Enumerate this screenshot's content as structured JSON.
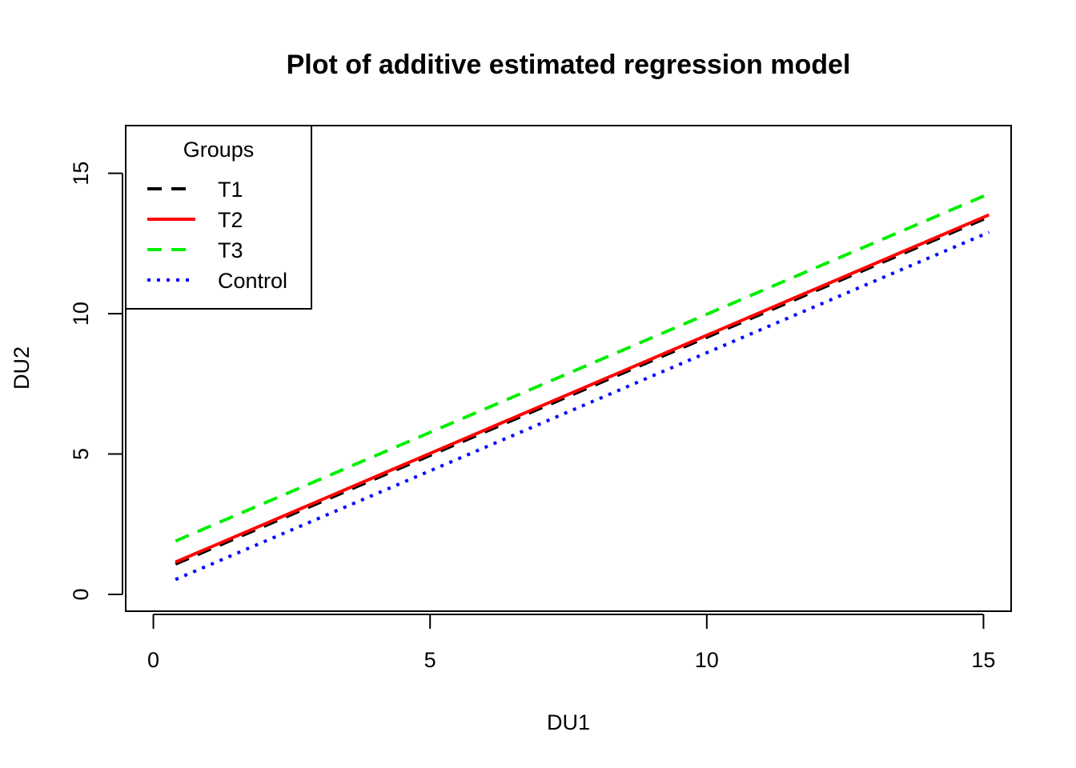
{
  "chart_data": {
    "type": "line",
    "title": "Plot of additive estimated regression model",
    "xlabel": "DU1",
    "ylabel": "DU2",
    "xlim": [
      -0.5,
      15.5
    ],
    "ylim": [
      -0.6,
      16.7
    ],
    "xticks": [
      0,
      5,
      10,
      15
    ],
    "yticks": [
      0,
      5,
      10,
      15
    ],
    "grid": false,
    "legend": {
      "title": "Groups",
      "position": "top-left"
    },
    "x": [
      0.4,
      15.1
    ],
    "series": [
      {
        "name": "T1",
        "color": "#000000",
        "style": "dashed",
        "values": [
          1.08,
          13.45
        ]
      },
      {
        "name": "T2",
        "color": "#ff0000",
        "style": "solid",
        "values": [
          1.15,
          13.52
        ]
      },
      {
        "name": "T3",
        "color": "#00ee00",
        "style": "dashed",
        "values": [
          1.9,
          14.27
        ]
      },
      {
        "name": "Control",
        "color": "#0000ff",
        "style": "dotted",
        "values": [
          0.53,
          12.9
        ]
      }
    ]
  }
}
